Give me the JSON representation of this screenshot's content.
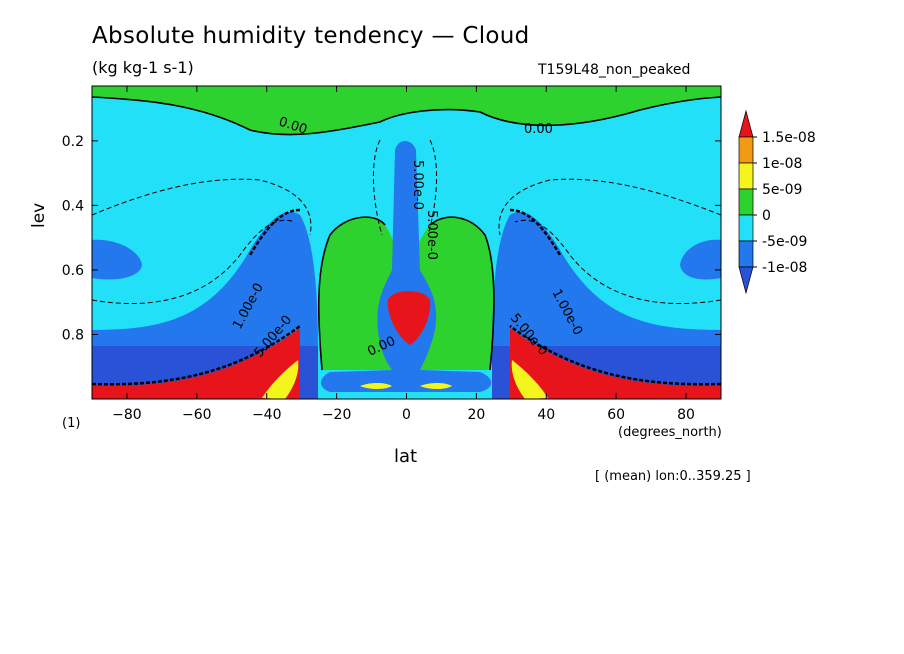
{
  "header": {
    "title": "Absolute humidity tendency — Cloud",
    "units": "(kg kg-1 s-1)",
    "run_name": "T159L48_non_peaked",
    "x_unit": "(degrees_north)",
    "mean_note": "[ (mean) lon:0..359.25 ]",
    "one_label": "(1)"
  },
  "chart_data": {
    "type": "heatmap",
    "title": "Absolute humidity tendency — Cloud",
    "subtitle": "(kg kg-1 s-1)",
    "xlabel": "lat",
    "ylabel": "lev",
    "xlim": [
      -90,
      90
    ],
    "ylim": [
      1.0,
      0.03
    ],
    "x_ticks": [
      -80,
      -60,
      -40,
      -20,
      0,
      20,
      40,
      60,
      80
    ],
    "x_tick_labels": [
      "−80",
      "−60",
      "−40",
      "−20",
      "0",
      "20",
      "40",
      "60",
      "80"
    ],
    "y_ticks": [
      0.2,
      0.4,
      0.6,
      0.8
    ],
    "y_tick_labels": [
      "0.2",
      "0.4",
      "0.6",
      "0.8"
    ],
    "legend_position": "right",
    "colorbar": {
      "levels": [
        "1.5e-08",
        "1e-08",
        "5e-09",
        "0",
        "-5e-09",
        "-1e-08"
      ],
      "colors": [
        "#e8141c",
        "#f39a14",
        "#f5f51e",
        "#2ed22e",
        "#22e0f7",
        "#2278ec",
        "#2a52d6"
      ]
    },
    "contour_labels": [
      "0.00",
      "0.00",
      "5.00e-0",
      "5.00e-0",
      "1.00e-0",
      "1.00e-0",
      "5.00e-0",
      "5.00e-0",
      "0.00"
    ]
  }
}
